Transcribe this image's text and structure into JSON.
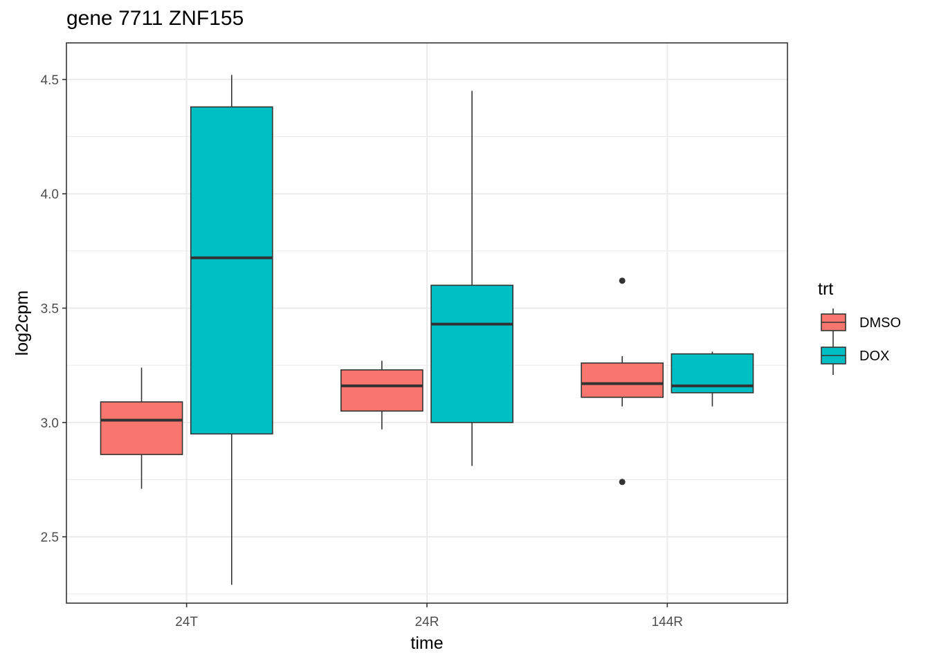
{
  "chart_data": {
    "type": "boxplot",
    "title": "gene 7711 ZNF155",
    "xlabel": "time",
    "ylabel": "log2cpm",
    "categories": [
      "24T",
      "24R",
      "144R"
    ],
    "ylim": [
      2.21,
      4.66
    ],
    "yticks": [
      2.5,
      3.0,
      3.5,
      4.0,
      4.5
    ],
    "ytick_labels": [
      "2.5",
      "3.0",
      "3.5",
      "4.0",
      "4.5"
    ],
    "grid": true,
    "legend": {
      "title": "trt",
      "position": "right"
    },
    "series": [
      {
        "name": "DMSO",
        "color": "#F8766D",
        "boxes": [
          {
            "category": "24T",
            "whisker_low": 2.71,
            "q1": 2.86,
            "median": 3.01,
            "q3": 3.09,
            "whisker_high": 3.24,
            "outliers": []
          },
          {
            "category": "24R",
            "whisker_low": 2.97,
            "q1": 3.05,
            "median": 3.16,
            "q3": 3.23,
            "whisker_high": 3.27,
            "outliers": []
          },
          {
            "category": "144R",
            "whisker_low": 3.07,
            "q1": 3.11,
            "median": 3.17,
            "q3": 3.26,
            "whisker_high": 3.29,
            "outliers": [
              3.62,
              2.74
            ]
          }
        ]
      },
      {
        "name": "DOX",
        "color": "#00BFC4",
        "boxes": [
          {
            "category": "24T",
            "whisker_low": 2.29,
            "q1": 2.95,
            "median": 3.72,
            "q3": 4.38,
            "whisker_high": 4.52,
            "outliers": []
          },
          {
            "category": "24R",
            "whisker_low": 2.81,
            "q1": 3.0,
            "median": 3.43,
            "q3": 3.6,
            "whisker_high": 4.45,
            "outliers": []
          },
          {
            "category": "144R",
            "whisker_low": 3.07,
            "q1": 3.13,
            "median": 3.16,
            "q3": 3.3,
            "whisker_high": 3.31,
            "outliers": []
          }
        ]
      }
    ]
  }
}
